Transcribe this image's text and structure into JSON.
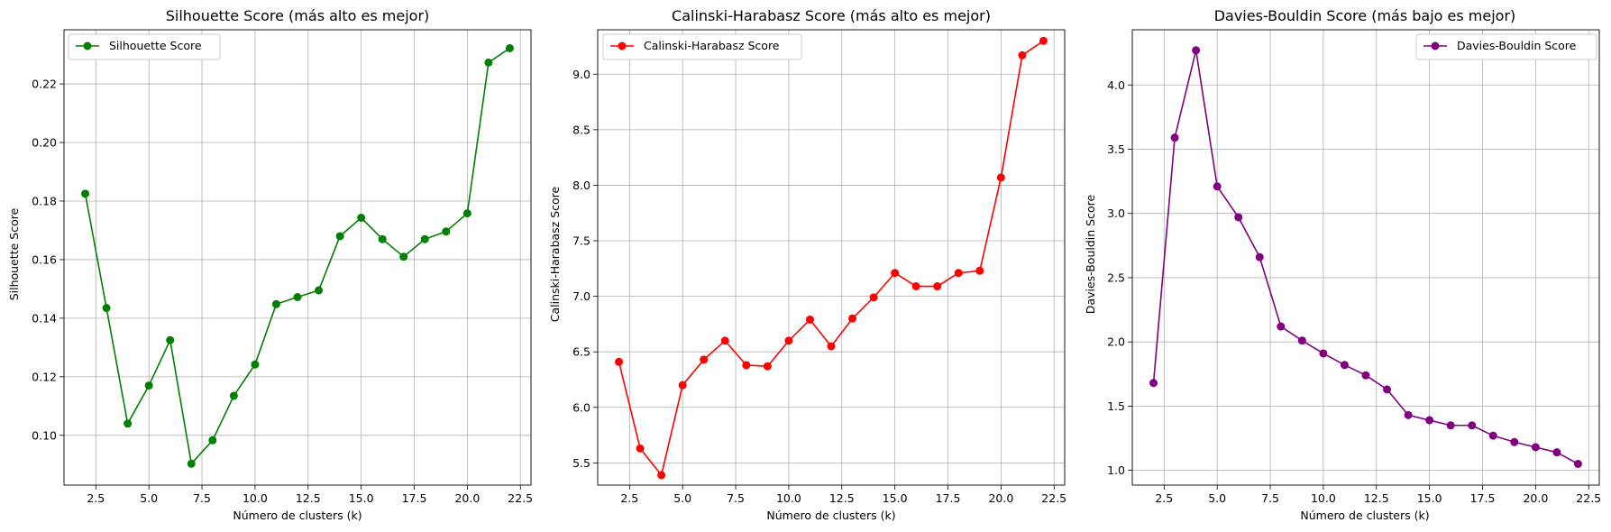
{
  "figure": {
    "charts": [
      {
        "title": "Silhouette Score (más alto es mejor)",
        "xlabel": "Número de clusters (k)",
        "ylabel": "Silhouette Score",
        "legend_label": "Silhouette Score",
        "legend_position": "top-left"
      },
      {
        "title": "Calinski-Harabasz Score (más alto es mejor)",
        "xlabel": "Número de clusters (k)",
        "ylabel": "Calinski-Harabasz Score",
        "legend_label": "Calinski-Harabasz Score",
        "legend_position": "top-left"
      },
      {
        "title": "Davies-Bouldin Score (más bajo es mejor)",
        "xlabel": "Número de clusters (k)",
        "ylabel": "Davies-Bouldin Score",
        "legend_label": "Davies-Bouldin Score",
        "legend_position": "top-right"
      }
    ]
  },
  "chart_data": [
    {
      "type": "line",
      "title": "Silhouette Score (más alto es mejor)",
      "xlabel": "Número de clusters (k)",
      "ylabel": "Silhouette Score",
      "color": "#008000",
      "grid": true,
      "legend": "top-left",
      "x": [
        2,
        3,
        4,
        5,
        6,
        7,
        8,
        9,
        10,
        11,
        12,
        13,
        14,
        15,
        16,
        17,
        18,
        19,
        20,
        21,
        22
      ],
      "series": [
        {
          "name": "Silhouette Score",
          "values": [
            0.1825,
            0.1435,
            0.104,
            0.117,
            0.1325,
            0.0903,
            0.0983,
            0.1135,
            0.1242,
            0.1448,
            0.1472,
            0.1495,
            0.168,
            0.1743,
            0.167,
            0.161,
            0.167,
            0.1696,
            0.1758,
            0.2273,
            0.2322
          ]
        }
      ],
      "xlim": [
        1.0,
        23.0
      ],
      "ylim": [
        0.083,
        0.2385
      ],
      "xticks": [
        2.5,
        5.0,
        7.5,
        10.0,
        12.5,
        15.0,
        17.5,
        20.0,
        22.5
      ],
      "xtick_labels": [
        "2.5",
        "5.0",
        "7.5",
        "10.0",
        "12.5",
        "15.0",
        "17.5",
        "20.0",
        "22.5"
      ],
      "yticks": [
        0.1,
        0.12,
        0.14,
        0.16,
        0.18,
        0.2,
        0.22
      ],
      "ytick_labels": [
        "0.10",
        "0.12",
        "0.14",
        "0.16",
        "0.18",
        "0.20",
        "0.22"
      ]
    },
    {
      "type": "line",
      "title": "Calinski-Harabasz Score (más alto es mejor)",
      "xlabel": "Número de clusters (k)",
      "ylabel": "Calinski-Harabasz Score",
      "color": "#ff0000",
      "grid": true,
      "legend": "top-left",
      "x": [
        2,
        3,
        4,
        5,
        6,
        7,
        8,
        9,
        10,
        11,
        12,
        13,
        14,
        15,
        16,
        17,
        18,
        19,
        20,
        21,
        22
      ],
      "series": [
        {
          "name": "Calinski-Harabasz Score",
          "values": [
            6.41,
            5.63,
            5.39,
            6.2,
            6.43,
            6.6,
            6.38,
            6.37,
            6.6,
            6.79,
            6.55,
            6.8,
            6.99,
            7.21,
            7.09,
            7.09,
            7.21,
            7.23,
            8.07,
            9.17,
            9.3
          ]
        }
      ],
      "xlim": [
        1.0,
        23.0
      ],
      "ylim": [
        5.3,
        9.4
      ],
      "xticks": [
        2.5,
        5.0,
        7.5,
        10.0,
        12.5,
        15.0,
        17.5,
        20.0,
        22.5
      ],
      "xtick_labels": [
        "2.5",
        "5.0",
        "7.5",
        "10.0",
        "12.5",
        "15.0",
        "17.5",
        "20.0",
        "22.5"
      ],
      "yticks": [
        5.5,
        6.0,
        6.5,
        7.0,
        7.5,
        8.0,
        8.5,
        9.0
      ],
      "ytick_labels": [
        "5.5",
        "6.0",
        "6.5",
        "7.0",
        "7.5",
        "8.0",
        "8.5",
        "9.0"
      ]
    },
    {
      "type": "line",
      "title": "Davies-Bouldin Score (más bajo es mejor)",
      "xlabel": "Número de clusters (k)",
      "ylabel": "Davies-Bouldin Score",
      "color": "#800080",
      "grid": true,
      "legend": "top-right",
      "x": [
        2,
        3,
        4,
        5,
        6,
        7,
        8,
        9,
        10,
        11,
        12,
        13,
        14,
        15,
        16,
        17,
        18,
        19,
        20,
        21,
        22
      ],
      "series": [
        {
          "name": "Davies-Bouldin Score",
          "values": [
            1.68,
            3.59,
            4.27,
            3.21,
            2.97,
            2.66,
            2.12,
            2.01,
            1.91,
            1.82,
            1.74,
            1.63,
            1.43,
            1.39,
            1.35,
            1.35,
            1.27,
            1.22,
            1.18,
            1.14,
            1.05
          ]
        }
      ],
      "xlim": [
        1.0,
        23.0
      ],
      "ylim": [
        0.885,
        4.43
      ],
      "xticks": [
        2.5,
        5.0,
        7.5,
        10.0,
        12.5,
        15.0,
        17.5,
        20.0,
        22.5
      ],
      "xtick_labels": [
        "2.5",
        "5.0",
        "7.5",
        "10.0",
        "12.5",
        "15.0",
        "17.5",
        "20.0",
        "22.5"
      ],
      "yticks": [
        1.0,
        1.5,
        2.0,
        2.5,
        3.0,
        3.5,
        4.0
      ],
      "ytick_labels": [
        "1.0",
        "1.5",
        "2.0",
        "2.5",
        "3.0",
        "3.5",
        "4.0"
      ]
    }
  ]
}
